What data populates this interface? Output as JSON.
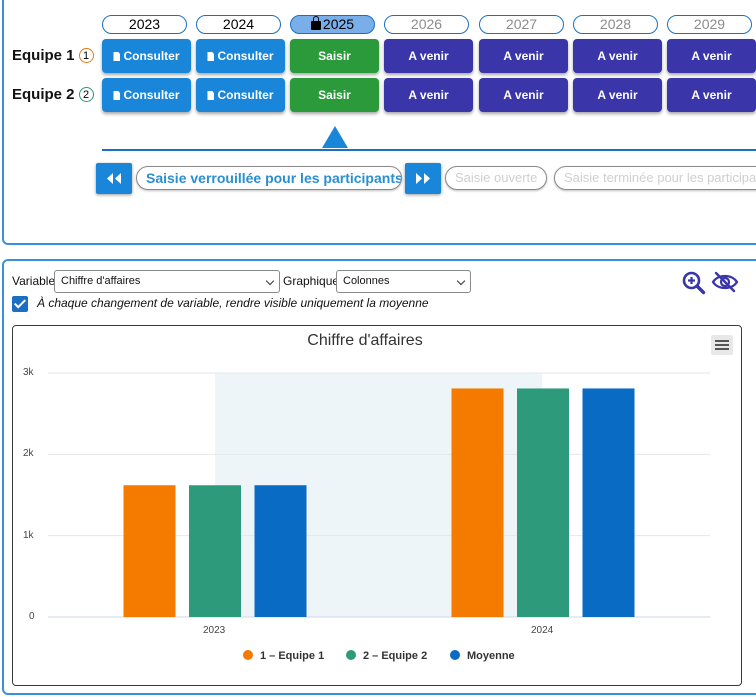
{
  "years": [
    {
      "label": "2023",
      "state": "past"
    },
    {
      "label": "2024",
      "state": "past"
    },
    {
      "label": "2025",
      "state": "current"
    },
    {
      "label": "2026",
      "state": "future"
    },
    {
      "label": "2027",
      "state": "future"
    },
    {
      "label": "2028",
      "state": "future"
    },
    {
      "label": "2029",
      "state": "future"
    }
  ],
  "teams": [
    {
      "name": "Equipe 1",
      "badge": "1",
      "cells": [
        "Consulter",
        "Consulter",
        "Saisir",
        "A venir",
        "A venir",
        "A venir",
        "A venir"
      ]
    },
    {
      "name": "Equipe 2",
      "badge": "2",
      "cells": [
        "Consulter",
        "Consulter",
        "Saisir",
        "A venir",
        "A venir",
        "A venir",
        "A venir"
      ]
    }
  ],
  "status": {
    "locked_label": "Saisie verrouillée pour les participants",
    "open_label": "Saisie ouverte",
    "done_label": "Saisie terminée pour les participants"
  },
  "controls": {
    "variable_label": "Variable",
    "variable_value": "Chiffre d'affaires",
    "graph_label": "Graphique",
    "graph_value": "Colonnes",
    "checkbox_checked": true,
    "checkbox_label": "À chaque changement de variable, rendre visible uniquement la moyenne"
  },
  "colors": {
    "equipe1": "#f47a00",
    "equipe2": "#2e9a7c",
    "moyenne": "#0a6bc4",
    "plot_band": "#eef5f8"
  },
  "chart_data": {
    "type": "bar",
    "title": "Chiffre d'affaires",
    "categories": [
      "2023",
      "2024"
    ],
    "series": [
      {
        "name": "1 – Equipe 1",
        "values": [
          1620,
          2810
        ]
      },
      {
        "name": "2 – Equipe 2",
        "values": [
          1620,
          2810
        ]
      },
      {
        "name": "Moyenne",
        "values": [
          1620,
          2810
        ]
      }
    ],
    "yticks": [
      "0",
      "1k",
      "2k",
      "3k"
    ],
    "ylim": [
      0,
      3000
    ],
    "grid": true,
    "legend": "bottom"
  }
}
